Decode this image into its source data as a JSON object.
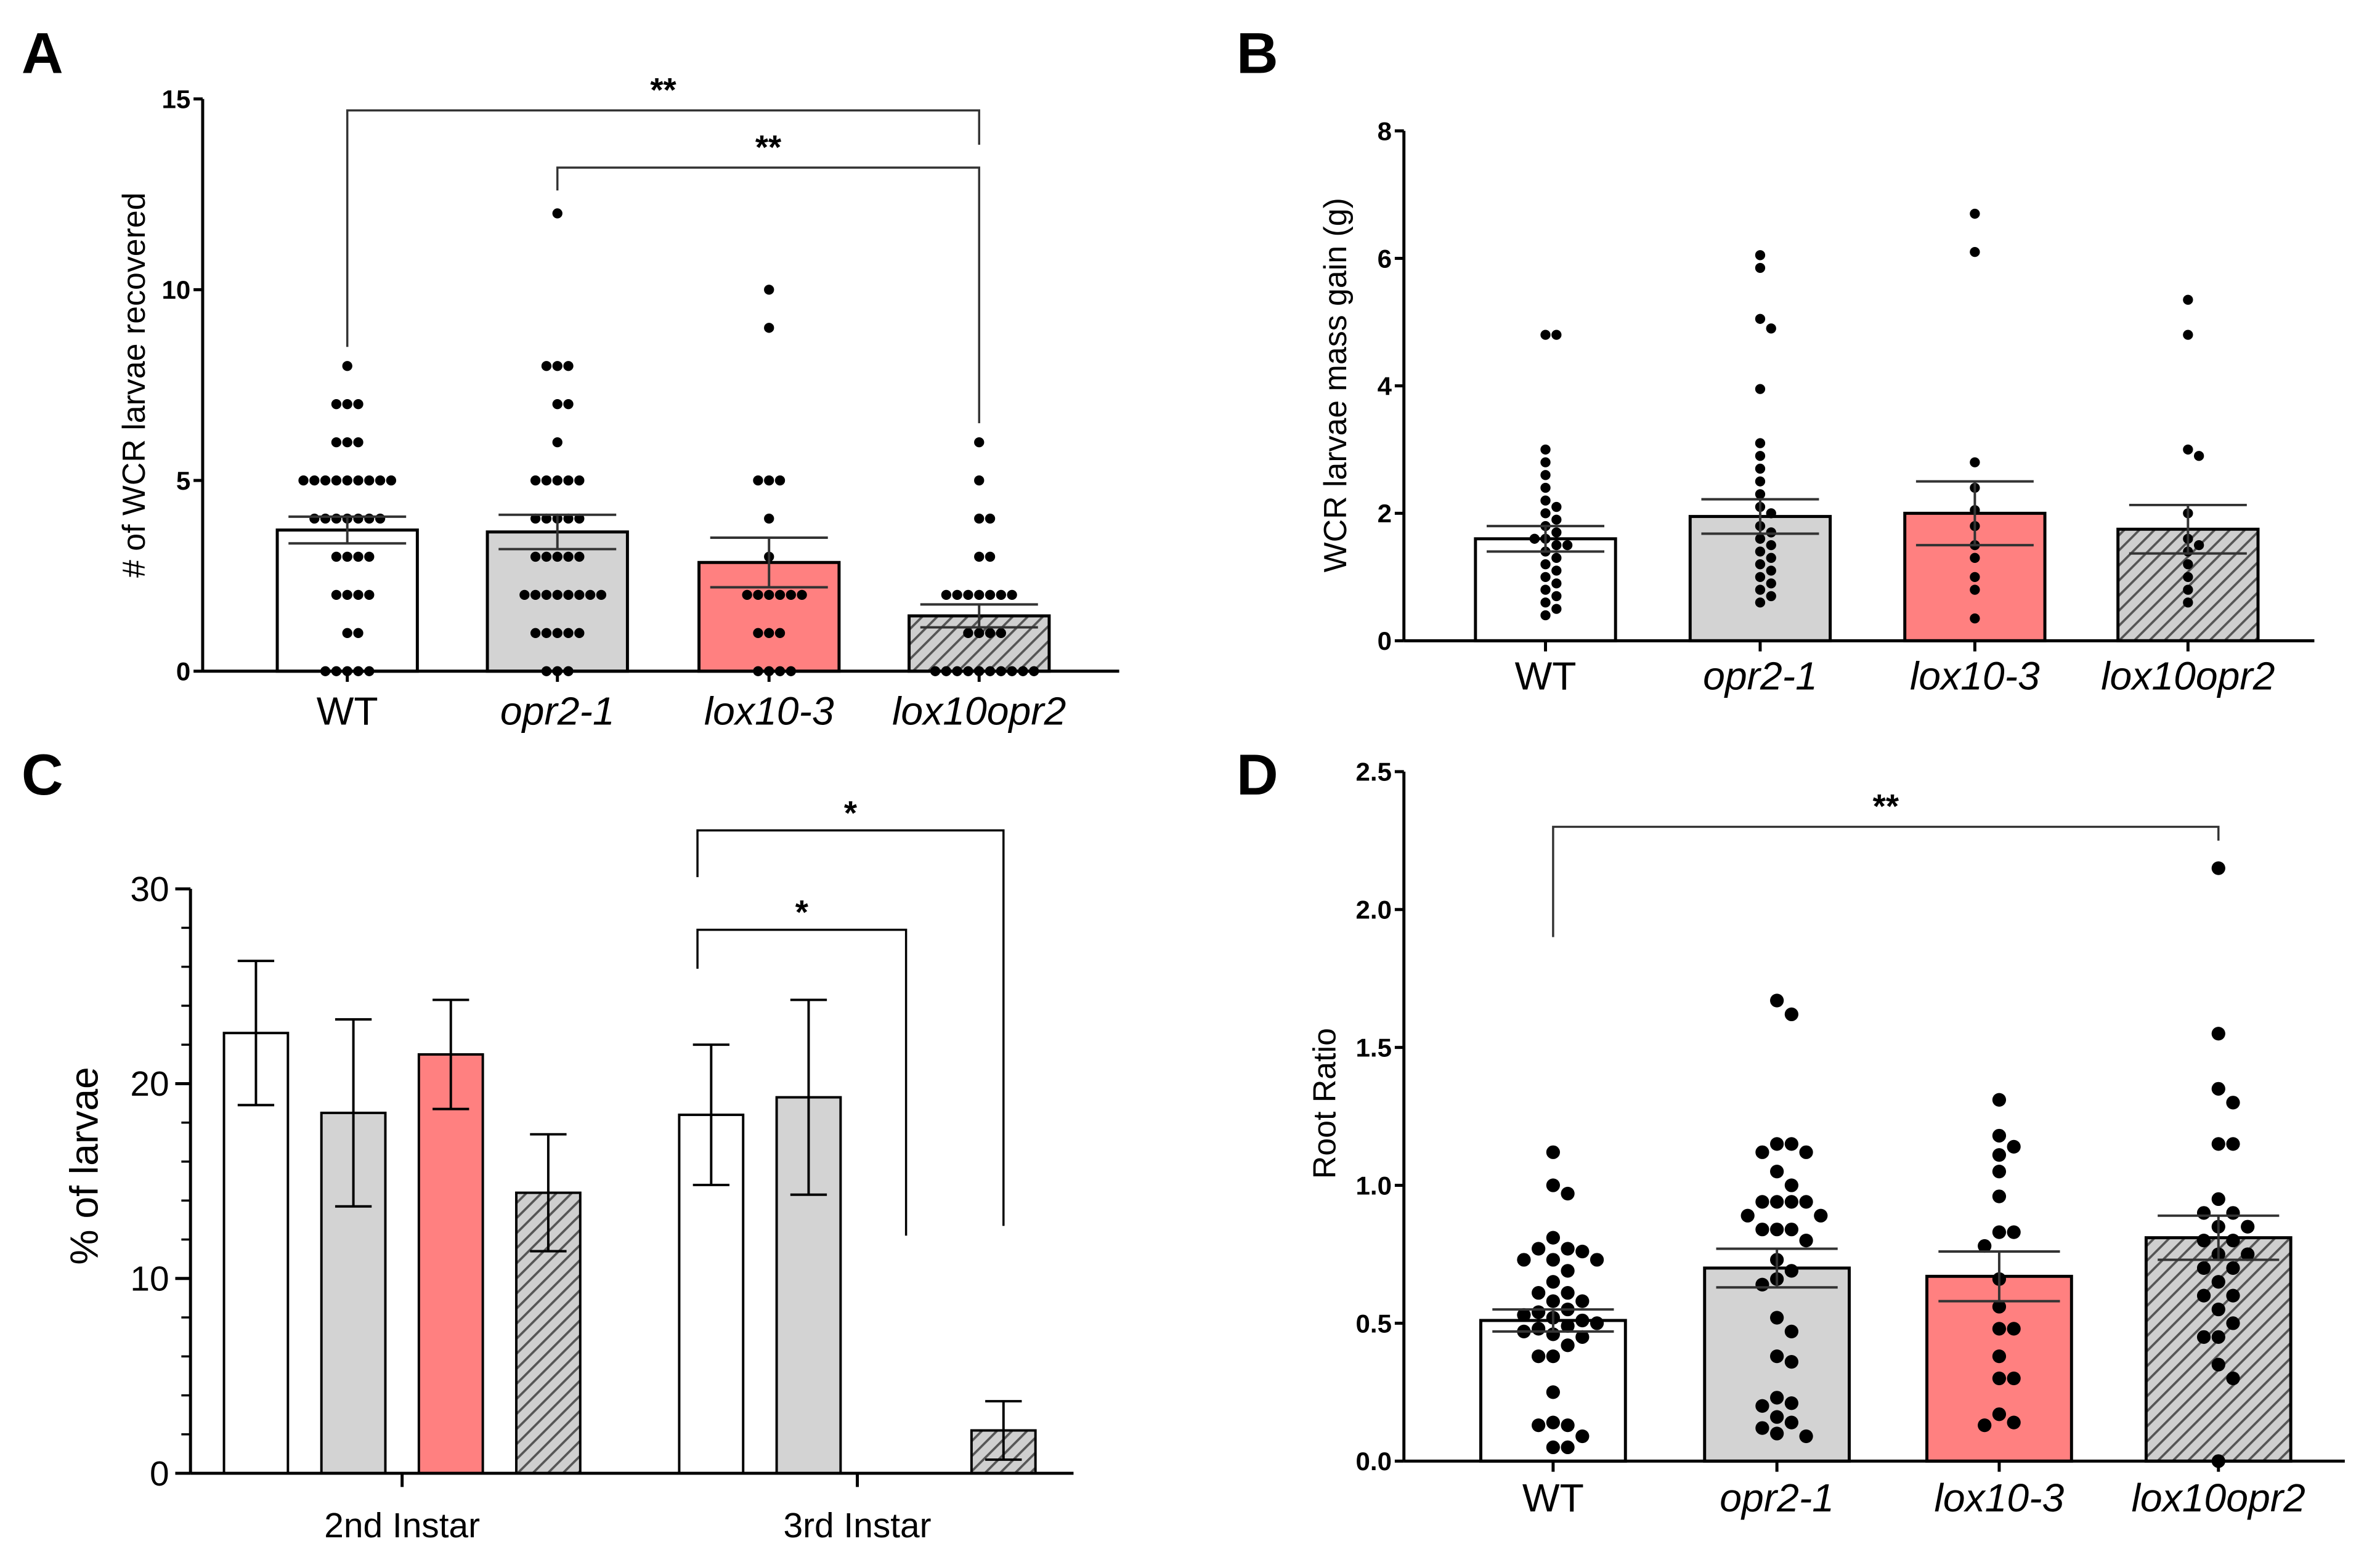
{
  "chart_data": [
    {
      "panel": "A",
      "type": "bar",
      "ylabel": "# of WCR larvae recovered",
      "ylim": [
        0,
        15
      ],
      "yticks": [
        "0",
        "5",
        "10",
        "15"
      ],
      "categories": [
        "WT",
        "opr2-1",
        "lox10-3",
        "lox10opr2"
      ],
      "italic": [
        false,
        true,
        true,
        true
      ],
      "values": [
        3.7,
        3.65,
        2.85,
        1.45
      ],
      "sem": [
        0.35,
        0.45,
        0.65,
        0.3
      ],
      "points": [
        [
          8,
          7,
          7,
          7,
          6,
          6,
          6,
          5,
          5,
          5,
          5,
          5,
          5,
          5,
          5,
          5,
          4,
          4,
          4,
          4,
          4,
          4,
          4,
          3,
          3,
          3,
          3,
          2,
          2,
          2,
          2,
          1,
          1,
          0,
          0,
          0,
          0,
          0
        ],
        [
          12,
          8,
          8,
          8,
          7,
          7,
          6,
          5,
          5,
          5,
          5,
          5,
          4,
          4,
          4,
          4,
          4,
          3,
          3,
          3,
          3,
          3,
          2,
          2,
          2,
          2,
          2,
          2,
          2,
          2,
          1,
          1,
          1,
          1,
          1,
          0,
          0,
          0
        ],
        [
          10,
          9,
          5,
          5,
          5,
          4,
          3,
          2,
          2,
          2,
          2,
          2,
          2,
          1,
          1,
          1,
          0,
          0,
          0,
          0
        ],
        [
          6,
          5,
          4,
          4,
          3,
          3,
          2,
          2,
          2,
          2,
          2,
          2,
          2,
          1,
          1,
          1,
          1,
          0,
          0,
          0,
          0,
          0,
          0,
          0,
          0,
          0,
          0
        ]
      ],
      "brackets": [
        {
          "from": 0,
          "to": 3,
          "y": 14.7,
          "left_end": 8.5,
          "right_end": 13.8,
          "label": "**"
        },
        {
          "from": 1,
          "to": 3,
          "y": 13.2,
          "left_end": 12.6,
          "right_end": 6.5,
          "label": "**"
        }
      ]
    },
    {
      "panel": "B",
      "type": "bar",
      "ylabel": "WCR larvae mass gain (g)",
      "ylim": [
        0,
        8
      ],
      "yticks": [
        "0",
        "2",
        "4",
        "6",
        "8"
      ],
      "categories": [
        "WT",
        "opr2-1",
        "lox10-3",
        "lox10opr2"
      ],
      "italic": [
        false,
        true,
        true,
        true
      ],
      "values": [
        1.6,
        1.95,
        2.0,
        1.75
      ],
      "sem": [
        0.2,
        0.27,
        0.5,
        0.38
      ],
      "points": [
        [
          4.8,
          4.8,
          3.0,
          2.8,
          2.6,
          2.4,
          2.2,
          2.1,
          2.0,
          1.9,
          1.8,
          1.7,
          1.6,
          1.6,
          1.5,
          1.5,
          1.4,
          1.3,
          1.2,
          1.1,
          1.0,
          0.9,
          0.8,
          0.7,
          0.6,
          0.5,
          0.4
        ],
        [
          6.05,
          5.85,
          5.05,
          4.9,
          3.95,
          3.1,
          2.9,
          2.7,
          2.5,
          2.3,
          2.1,
          2.0,
          1.8,
          1.7,
          1.6,
          1.5,
          1.4,
          1.3,
          1.2,
          1.1,
          1.0,
          0.9,
          0.8,
          0.7,
          0.6
        ],
        [
          6.7,
          6.1,
          2.8,
          2.4,
          2.05,
          1.8,
          1.5,
          1.3,
          1.0,
          0.8,
          0.35
        ],
        [
          5.35,
          4.8,
          3.0,
          2.9,
          2.0,
          1.6,
          1.5,
          1.4,
          1.2,
          1.0,
          0.8,
          0.6
        ]
      ],
      "brackets": []
    },
    {
      "panel": "C",
      "type": "bar",
      "ylabel": "% of larvae",
      "ylim": [
        0,
        30
      ],
      "yticks": [
        "0",
        "10",
        "20",
        "30"
      ],
      "groups": [
        "2nd Instar",
        "3rd Instar"
      ],
      "series_names": [
        "WT",
        "opr2-1",
        "lox10-3",
        "lox10opr2"
      ],
      "values": [
        [
          22.6,
          18.5,
          21.5,
          14.4
        ],
        [
          18.4,
          19.3,
          0,
          2.2
        ]
      ],
      "sem": [
        [
          3.7,
          4.8,
          2.8,
          3.0
        ],
        [
          3.6,
          5.0,
          0,
          1.5
        ]
      ],
      "brackets": [
        {
          "group": 1,
          "from": 0,
          "to": 2,
          "y": 27.9,
          "left_end": 25.9,
          "right_end": 12.2,
          "label": "*"
        },
        {
          "group": 1,
          "from": 0,
          "to": 3,
          "y": 33.0,
          "left_end": 30.6,
          "right_end": 12.7,
          "label": "*"
        }
      ]
    },
    {
      "panel": "D",
      "type": "bar",
      "ylabel": "Root Ratio",
      "ylim": [
        0,
        2.5
      ],
      "yticks": [
        "0.0",
        "0.5",
        "1.0",
        "1.5",
        "2.0",
        "2.5"
      ],
      "categories": [
        "WT",
        "opr2-1",
        "lox10-3",
        "lox10opr2"
      ],
      "italic": [
        false,
        true,
        true,
        true
      ],
      "values": [
        0.51,
        0.7,
        0.67,
        0.81
      ],
      "sem": [
        0.04,
        0.07,
        0.09,
        0.08
      ],
      "points": [
        [
          1.12,
          1.0,
          0.97,
          0.81,
          0.77,
          0.77,
          0.76,
          0.73,
          0.73,
          0.73,
          0.69,
          0.65,
          0.61,
          0.61,
          0.58,
          0.58,
          0.55,
          0.54,
          0.53,
          0.52,
          0.51,
          0.5,
          0.49,
          0.48,
          0.47,
          0.46,
          0.45,
          0.42,
          0.38,
          0.38,
          0.25,
          0.13,
          0.13,
          0.14,
          0.09,
          0.05,
          0.05
        ],
        [
          1.67,
          1.62,
          1.15,
          1.15,
          1.12,
          1.12,
          1.05,
          1.0,
          0.94,
          0.94,
          0.94,
          0.94,
          0.89,
          0.89,
          0.84,
          0.84,
          0.84,
          0.8,
          0.73,
          0.69,
          0.66,
          0.64,
          0.52,
          0.47,
          0.38,
          0.36,
          0.23,
          0.21,
          0.2,
          0.16,
          0.14,
          0.12,
          0.1,
          0.09
        ],
        [
          1.31,
          1.18,
          1.14,
          1.11,
          1.05,
          0.96,
          0.83,
          0.83,
          0.78,
          0.66,
          0.56,
          0.48,
          0.48,
          0.38,
          0.3,
          0.3,
          0.17,
          0.14,
          0.13
        ],
        [
          2.15,
          1.55,
          1.35,
          1.3,
          1.15,
          1.15,
          0.95,
          0.9,
          0.9,
          0.85,
          0.85,
          0.8,
          0.8,
          0.75,
          0.75,
          0.7,
          0.7,
          0.65,
          0.6,
          0.6,
          0.55,
          0.5,
          0.45,
          0.45,
          0.35,
          0.3,
          0.0
        ]
      ],
      "brackets": [
        {
          "from": 0,
          "to": 3,
          "y": 2.3,
          "left_end": 1.9,
          "right_end": 2.25,
          "label": "**"
        }
      ]
    }
  ],
  "colors": {
    "WT": "#ffffff",
    "opr2-1": "#d3d3d3",
    "lox10-3": "#ff8080",
    "lox10opr2": "#cfcfcf",
    "hatch": "#555555"
  }
}
